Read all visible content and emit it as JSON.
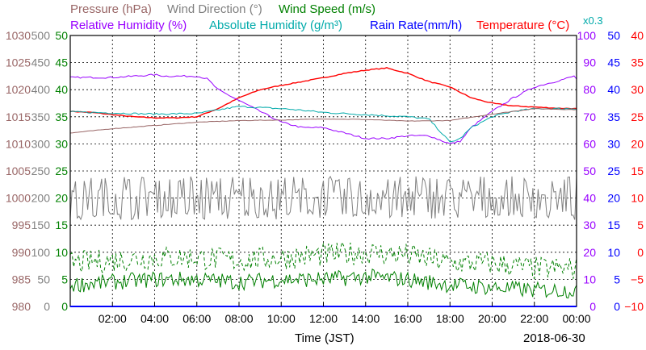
{
  "chart_data": {
    "type": "line",
    "title_labels": [
      {
        "id": "pressure",
        "text": "Pressure (hPa)",
        "color": "#996666"
      },
      {
        "id": "winddir",
        "text": "Wind Direction (°)",
        "color": "#808080"
      },
      {
        "id": "windspeed",
        "text": "Wind Speed (m/s)",
        "color": "#008000"
      },
      {
        "id": "relhum",
        "text": "Relative Humidity (%)",
        "color": "#9900ff"
      },
      {
        "id": "abshum",
        "text": "Absolute Humidity (g/m³)",
        "color": "#00aaaa"
      },
      {
        "id": "absmult",
        "text": "x0.3",
        "color": "#00aaaa"
      },
      {
        "id": "rain",
        "text": "Rain Rate(mm/h)",
        "color": "#0000ff"
      },
      {
        "id": "temp",
        "text": "Temperature (°C)",
        "color": "#ff0000"
      }
    ],
    "xlabel": "Time (JST)",
    "date_label": "2018-06-30",
    "x_range": [
      "00:00",
      "24:00"
    ],
    "x_ticks": [
      "02:00",
      "04:00",
      "06:00",
      "08:00",
      "10:00",
      "12:00",
      "14:00",
      "16:00",
      "18:00",
      "20:00",
      "22:00",
      "00:00"
    ],
    "grid": true,
    "axes": {
      "pressure": {
        "color": "#996666",
        "ticks": [
          "1030",
          "1025",
          "1020",
          "1015",
          "1010",
          "1005",
          "1000",
          "995",
          "990",
          "985",
          "980"
        ],
        "range": [
          980,
          1030
        ]
      },
      "winddir": {
        "color": "#808080",
        "ticks": [
          "500",
          "450",
          "400",
          "350",
          "300",
          "250",
          "200",
          "150",
          "100",
          "50",
          "0"
        ],
        "range": [
          0,
          500
        ]
      },
      "windspeed": {
        "color": "#008000",
        "ticks": [
          "50",
          "45",
          "40",
          "35",
          "30",
          "25",
          "20",
          "15",
          "10",
          "5",
          "0"
        ],
        "range": [
          0,
          50
        ]
      },
      "relhum": {
        "color": "#9900ff",
        "ticks": [
          "100",
          "90",
          "80",
          "70",
          "60",
          "50",
          "40",
          "30",
          "20",
          "10",
          "0"
        ],
        "range": [
          0,
          100
        ]
      },
      "rain": {
        "color": "#0000ff",
        "ticks": [
          "50",
          "45",
          "40",
          "35",
          "30",
          "25",
          "20",
          "15",
          "10",
          "5",
          "0"
        ],
        "range": [
          0,
          50
        ]
      },
      "temp": {
        "color": "#ff0000",
        "ticks": [
          "40",
          "35",
          "30",
          "25",
          "20",
          "15",
          "10",
          "5",
          "0",
          "−5",
          "−10"
        ],
        "range": [
          -10,
          40
        ]
      }
    },
    "series": [
      {
        "name": "Temperature (°C)",
        "key": "temp",
        "color": "#ff0000",
        "style": "solid",
        "x": [
          0,
          1,
          2,
          3,
          4,
          5,
          6,
          7,
          8,
          9,
          10,
          11,
          12,
          13,
          14,
          15,
          16,
          17,
          18,
          19,
          20,
          21,
          22,
          23,
          24
        ],
        "y": [
          26.0,
          25.8,
          25.4,
          25.0,
          24.8,
          24.8,
          25.0,
          26.5,
          28.5,
          30.0,
          30.8,
          31.5,
          32.2,
          33.0,
          33.6,
          34.0,
          33.0,
          31.5,
          30.5,
          28.5,
          27.5,
          27.0,
          26.8,
          26.6,
          26.5
        ]
      },
      {
        "name": "Relative Humidity (%)",
        "key": "relhum",
        "color": "#9900ff",
        "style": "solid",
        "x": [
          0,
          1,
          2,
          3,
          4,
          4.5,
          5,
          6,
          6.5,
          7,
          8,
          9,
          10,
          11,
          12,
          13,
          14,
          15,
          16,
          17,
          18,
          18.5,
          19,
          20,
          21,
          22,
          23,
          23.9,
          24
        ],
        "y": [
          84.5,
          84.5,
          84.5,
          85,
          85.5,
          85,
          85,
          85,
          84,
          80,
          76,
          72,
          68,
          66,
          66,
          64,
          62,
          62,
          63,
          63,
          60,
          61,
          66,
          72,
          77,
          81,
          83,
          85,
          84
        ]
      },
      {
        "name": "Absolute Humidity (g/m³) x0.3",
        "key": "abshum",
        "color": "#00aaaa",
        "style": "solid",
        "x": [
          0,
          2,
          4,
          6,
          7,
          8,
          9,
          10,
          11,
          12,
          13,
          14,
          15,
          16,
          17,
          18,
          18.5,
          19,
          20,
          21,
          22,
          23,
          24
        ],
        "y": [
          71.8,
          71.4,
          71.0,
          71.2,
          72.5,
          73.8,
          73.4,
          73.0,
          72.4,
          71.6,
          71.2,
          70.8,
          70.4,
          70.0,
          69.2,
          60.6,
          62.0,
          66.0,
          70.0,
          72.0,
          73.0,
          73.0,
          73.0
        ]
      },
      {
        "name": "Pressure (hPa)",
        "key": "pressure",
        "color": "#996666",
        "style": "solid",
        "x": [
          0,
          2,
          4,
          6,
          8,
          10,
          12,
          14,
          16,
          18,
          20,
          22,
          24
        ],
        "y": [
          1012.0,
          1012.8,
          1013.4,
          1014.0,
          1014.3,
          1014.4,
          1014.6,
          1014.5,
          1014.2,
          1014.3,
          1015.5,
          1016.5,
          1016.3
        ]
      },
      {
        "name": "Wind Direction (°)",
        "key": "winddir",
        "color": "#808080",
        "style": "solid",
        "x": [
          0,
          24
        ],
        "y": [
          220,
          180
        ],
        "spread": [
          160,
          230
        ]
      },
      {
        "name": "Wind Speed (m/s)",
        "key": "windspeed",
        "color": "#008000",
        "style": "dashed",
        "x": [
          0,
          2,
          4,
          6,
          8,
          10,
          12,
          14,
          16,
          18,
          20,
          22,
          24
        ],
        "y": [
          8,
          8.5,
          9,
          9,
          8.5,
          9,
          9.5,
          10,
          9.5,
          8,
          8,
          7,
          7
        ]
      },
      {
        "name": "Wind Speed (m/s)",
        "key": "windspeed",
        "color": "#008000",
        "style": "solid",
        "x": [
          0,
          2,
          4,
          6,
          8,
          10,
          12,
          14,
          16,
          18,
          20,
          22,
          24
        ],
        "y": [
          4,
          4.5,
          5,
          5,
          4.5,
          5,
          5,
          5.5,
          5,
          4,
          3.5,
          3,
          3
        ]
      }
    ]
  }
}
